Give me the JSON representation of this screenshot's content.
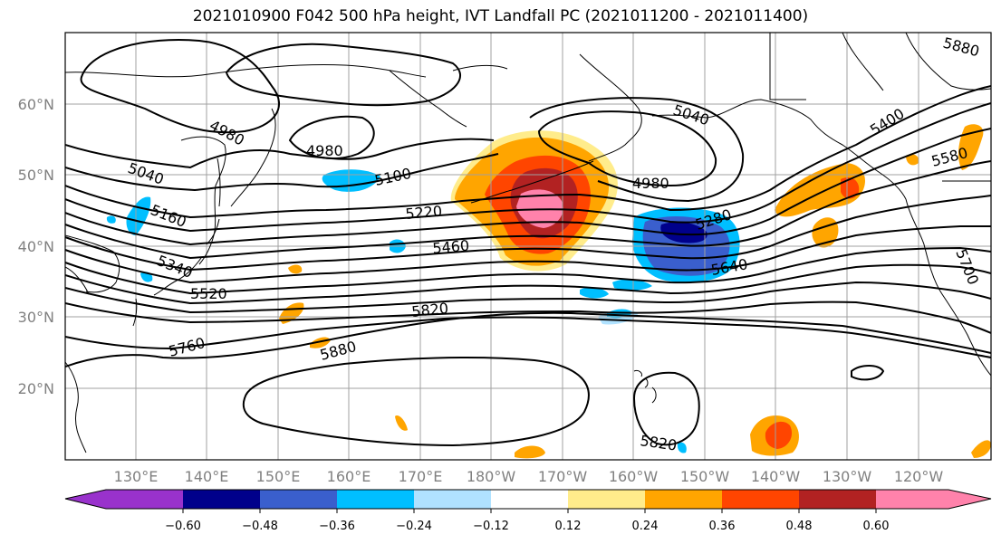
{
  "title": "2021010900 F042 500 hPa height, IVT Landfall PC (2021011200 - 2021011400)",
  "map": {
    "lat_ticks": [
      "60°N",
      "50°N",
      "40°N",
      "30°N",
      "20°N"
    ],
    "lon_ticks": [
      "130°E",
      "140°E",
      "150°E",
      "160°E",
      "170°E",
      "180°W",
      "170°W",
      "160°W",
      "150°W",
      "140°W",
      "130°W",
      "120°W"
    ],
    "contour_labels": [
      "4980",
      "4980",
      "5040",
      "5100",
      "5160",
      "5040",
      "4980",
      "5220",
      "5280",
      "5340",
      "5400",
      "5460",
      "5520",
      "5580",
      "5640",
      "5700",
      "5760",
      "5820",
      "5880",
      "5820",
      "5880"
    ],
    "fill_colors": {
      "neg_strong": "#00008b",
      "neg_mid": "#3a5fcd",
      "neg_light": "#00bfff",
      "neg_pale": "#b0e2ff",
      "pos_pale": "#ffec8b",
      "pos_light": "#ffa500",
      "pos_mid": "#ff4500",
      "pos_strong": "#b22222",
      "pos_max": "#ff82ab"
    }
  },
  "colorbar": {
    "colors": [
      "#9932cc",
      "#00008b",
      "#3a5fcd",
      "#00bfff",
      "#b0e2ff",
      "#ffffff",
      "#ffec8b",
      "#ffa500",
      "#ff4500",
      "#b22222",
      "#ff82ab"
    ],
    "tick_labels": [
      "−0.60",
      "−0.48",
      "−0.36",
      "−0.24",
      "−0.12",
      "0.12",
      "0.24",
      "0.36",
      "0.48",
      "0.60"
    ]
  }
}
